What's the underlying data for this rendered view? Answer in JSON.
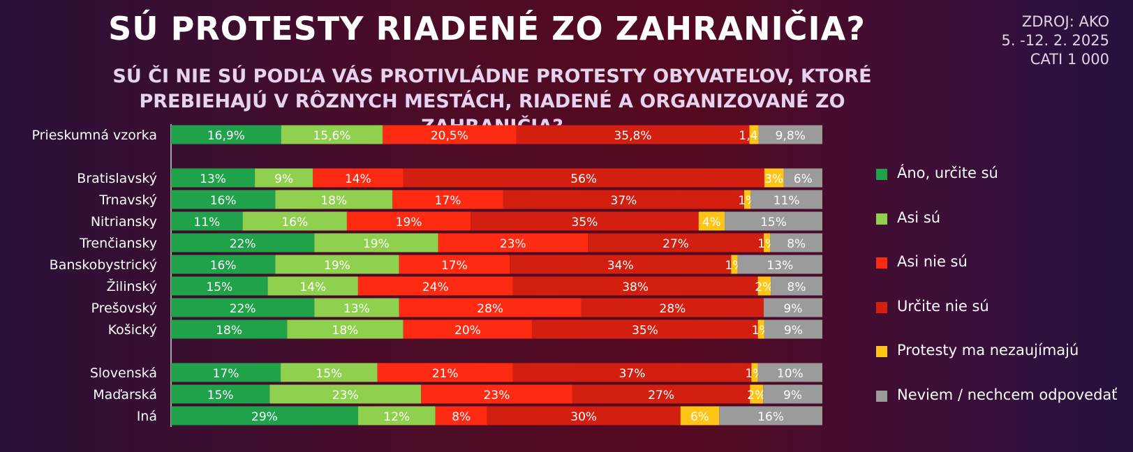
{
  "header": {
    "title": "SÚ PROTESTY RIADENÉ ZO ZAHRANIČIA?",
    "subtitle_line1": "SÚ ČI NIE SÚ PODĽA VÁS PROTIVLÁDNE PROTESTY OBYVATEĽOV, KTORÉ",
    "subtitle_line2": "PREBIEHAJÚ V RÔZNYCH MESTÁCH, RIADENÉ A ORGANIZOVANÉ  ZO ZAHRANIČIA?",
    "source_line1": "ZDROJ: AKO",
    "source_line2": "5. -12. 2. 2025",
    "source_line3": "CATI 1 000"
  },
  "colors": {
    "ano_urcite": "#1fa24a",
    "asi_su": "#8fd04e",
    "asi_nie": "#ff2a12",
    "urcite_nie": "#d21f10",
    "nezaujimaju": "#ffc516",
    "neviem": "#9b9b9b"
  },
  "chart_data": {
    "type": "bar",
    "orientation": "horizontal",
    "stacked": true,
    "legend_position": "right",
    "categories": [
      "Prieskumná vzorka",
      "Bratislavský",
      "Trnavský",
      "Nitriansky",
      "Trenčiansky",
      "Banskobystrický",
      "Žilinský",
      "Prešovský",
      "Košický",
      "Slovenská",
      "Maďarská",
      "Iná"
    ],
    "groups": [
      [
        0
      ],
      [
        1,
        2,
        3,
        4,
        5,
        6,
        7,
        8
      ],
      [
        9,
        10,
        11
      ]
    ],
    "series": [
      {
        "name": "Áno, určite sú",
        "color_key": "ano_urcite",
        "values": [
          16.9,
          13,
          16,
          11,
          22,
          16,
          15,
          22,
          18,
          17,
          15,
          29
        ],
        "labels": [
          "16,9%",
          "13%",
          "16%",
          "11%",
          "22%",
          "16%",
          "15%",
          "22%",
          "18%",
          "17%",
          "15%",
          "29%"
        ]
      },
      {
        "name": "Asi sú",
        "color_key": "asi_su",
        "values": [
          15.6,
          9,
          18,
          16,
          19,
          19,
          14,
          13,
          18,
          15,
          23,
          12
        ],
        "labels": [
          "15,6%",
          "9%",
          "18%",
          "16%",
          "19%",
          "19%",
          "14%",
          "13%",
          "18%",
          "15%",
          "23%",
          "12%"
        ]
      },
      {
        "name": "Asi nie sú",
        "color_key": "asi_nie",
        "values": [
          20.5,
          14,
          17,
          19,
          23,
          17,
          24,
          28,
          20,
          21,
          23,
          8
        ],
        "labels": [
          "20,5%",
          "14%",
          "17%",
          "19%",
          "23%",
          "17%",
          "24%",
          "28%",
          "20%",
          "21%",
          "23%",
          "8%"
        ]
      },
      {
        "name": "Určite nie sú",
        "color_key": "urcite_nie",
        "values": [
          35.8,
          56,
          37,
          35,
          27,
          34,
          38,
          28,
          35,
          37,
          27,
          30
        ],
        "labels": [
          "35,8%",
          "56%",
          "37%",
          "35%",
          "27%",
          "34%",
          "38%",
          "28%",
          "35%",
          "37%",
          "27%",
          "30%"
        ]
      },
      {
        "name": "Protesty ma nezaujímajú",
        "color_key": "nezaujimaju",
        "values": [
          1.4,
          3,
          1,
          4,
          1,
          1,
          2,
          0,
          1,
          1,
          2,
          6
        ],
        "labels": [
          "1,4%",
          "3%",
          "1%",
          "4%",
          "1%",
          "1%",
          "2%",
          "",
          "1%",
          "1%",
          "2%",
          "6%"
        ]
      },
      {
        "name": "Neviem / nechcem odpovedať",
        "color_key": "neviem",
        "values": [
          9.8,
          6,
          11,
          15,
          8,
          13,
          8,
          9,
          9,
          10,
          9,
          16
        ],
        "labels": [
          "9,8%",
          "6%",
          "11%",
          "15%",
          "8%",
          "13%",
          "8%",
          "9%",
          "9%",
          "10%",
          "9%",
          "16%"
        ]
      }
    ]
  }
}
